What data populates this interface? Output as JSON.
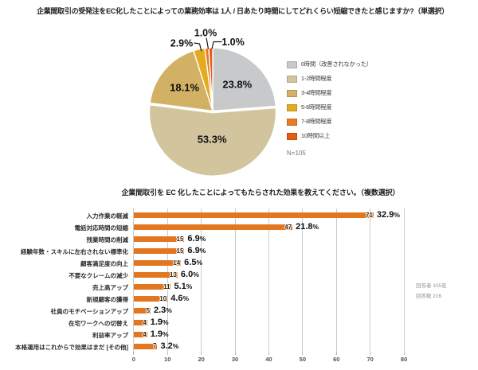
{
  "page": {
    "background": "#ffffff"
  },
  "chart_data": [
    {
      "type": "pie",
      "title": "企業間取引の受発注をEC化したことによっての業務効率は 1人 / 日あたり時間にしてどれくらい短縮できたと感じますか?（単選択）",
      "n_label": "N=105",
      "legend_position": "right",
      "slices": [
        {
          "label": "0時間（改善されなかった）",
          "value": 23.8,
          "pct_label": "23.8%",
          "color": "#c8c9cb"
        },
        {
          "label": "1-2時間程度",
          "value": 53.3,
          "pct_label": "53.3%",
          "color": "#d2c59e"
        },
        {
          "label": "3-4時間程度",
          "value": 18.1,
          "pct_label": "18.1%",
          "color": "#d3b164"
        },
        {
          "label": "5-6時間程度",
          "value": 2.9,
          "pct_label": "2.9%",
          "color": "#e3aa22"
        },
        {
          "label": "7-8時間程度",
          "value": 1.0,
          "pct_label": "1.0%",
          "color": "#ea7a24"
        },
        {
          "label": "10時間以上",
          "value": 1.0,
          "pct_label": "1.0%",
          "color": "#e25c12"
        }
      ]
    },
    {
      "type": "bar",
      "orientation": "horizontal",
      "title": "企業間取引を EC 化したことによってもたらされた効果を教えてください。（複数選択）",
      "bar_color": "#e2771f",
      "xlim": [
        0,
        80
      ],
      "x_ticks": [
        0,
        10,
        20,
        30,
        40,
        50,
        60,
        70,
        80
      ],
      "grid": true,
      "categories": [
        "入力作業の軽減",
        "電話対応時間の短縮",
        "残業時間の削減",
        "経験年数・スキルに左右されない標準化",
        "顧客満足度の向上",
        "不要なクレームの減少",
        "売上高アップ",
        "新規顧客の獲得",
        "社員のモチベーションアップ",
        "在宅ワークへの切替え",
        "利益率アップ",
        "本格運用はこれからで効果はまだ [その他]"
      ],
      "values": [
        71,
        47,
        15,
        15,
        14,
        13,
        11,
        10,
        5,
        4,
        4,
        7
      ],
      "pct_labels": [
        "32.9%",
        "21.8%",
        "6.9%",
        "6.9%",
        "6.5%",
        "6.0%",
        "5.1%",
        "4.6%",
        "2.3%",
        "1.9%",
        "1.9%",
        "3.2%"
      ],
      "notes": [
        "回答者 105名",
        "回答数 216"
      ]
    }
  ]
}
